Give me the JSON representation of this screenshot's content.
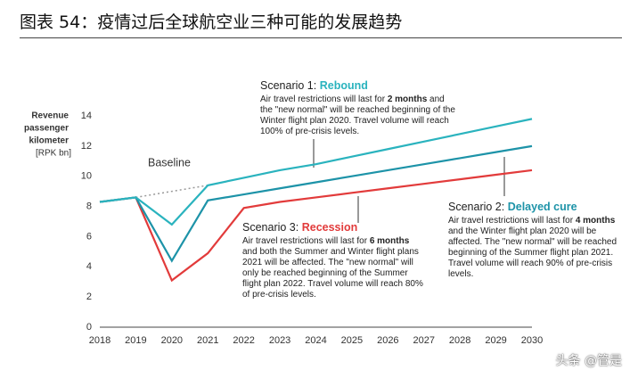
{
  "title": "图表 54：疫情过后全球航空业三种可能的发展趋势",
  "watermark": "头条 @管是",
  "chart_data": {
    "type": "line",
    "y_label": [
      "Revenue",
      "passenger",
      "kilometer",
      "[RPK bn]"
    ],
    "x": [
      2018,
      2019,
      2020,
      2021,
      2022,
      2023,
      2024,
      2025,
      2026,
      2027,
      2028,
      2029,
      2030
    ],
    "xlim": [
      2018,
      2030
    ],
    "xticks": [
      2018,
      2019,
      2020,
      2021,
      2022,
      2023,
      2024,
      2025,
      2026,
      2027,
      2028,
      2029,
      2030
    ],
    "ylim": [
      0,
      14
    ],
    "yticks": [
      0,
      2,
      4,
      6,
      8,
      10,
      12,
      14
    ],
    "grid": false,
    "series": [
      {
        "name": "Baseline",
        "color": "#999999",
        "dash": true,
        "values": [
          null,
          8.6,
          9.0,
          9.4,
          null,
          null,
          null,
          null,
          null,
          null,
          null,
          null,
          null
        ]
      },
      {
        "name": "Recession",
        "prefix": "Scenario 3: ",
        "color": "#e23b3b",
        "note": [
          "Air travel restrictions will last for ",
          "6 months",
          " and both the Summer and Winter flight plans 2021 will be affected. The \"new normal\" will only be reached beginning of the Summer flight plan 2022. Travel volume will reach 80% of pre-crisis levels."
        ],
        "values": [
          8.3,
          8.6,
          3.1,
          4.9,
          7.9,
          8.3,
          8.6,
          8.9,
          9.2,
          9.5,
          9.8,
          10.1,
          10.4
        ]
      },
      {
        "name": "Delayed cure",
        "prefix": "Scenario 2: ",
        "color": "#1d93a8",
        "note": [
          "Air travel restrictions will last for ",
          "4 months",
          " and the Winter flight plan 2020 will be affected. The \"new normal\" will be reached beginning of the Summer flight plan 2021. Travel volume will reach 90% of pre-crisis levels."
        ],
        "values": [
          8.3,
          8.6,
          4.4,
          8.4,
          8.8,
          9.2,
          9.6,
          10.0,
          10.4,
          10.8,
          11.2,
          11.6,
          12.0
        ]
      },
      {
        "name": "Rebound",
        "prefix": "Scenario 1: ",
        "color": "#2ab3be",
        "note": [
          "Air travel restrictions will last for ",
          "2 months",
          " and the \"new normal\" will be reached beginning of the Winter flight plan 2020. Travel volume will reach 100% of pre-crisis levels."
        ],
        "values": [
          8.3,
          8.6,
          6.8,
          9.4,
          9.9,
          10.4,
          10.8,
          11.3,
          11.8,
          12.3,
          12.8,
          13.3,
          13.8
        ]
      }
    ]
  }
}
